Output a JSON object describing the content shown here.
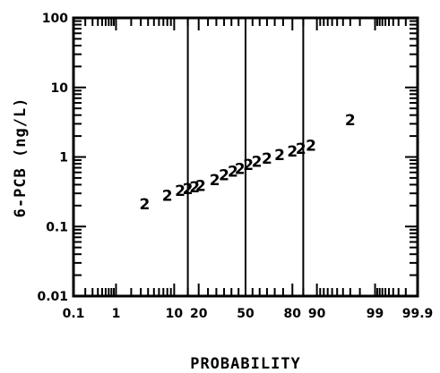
{
  "chart_data": {
    "type": "scatter",
    "title": "",
    "xlabel": "PROBABILITY",
    "ylabel": "6-PCB (ng/L)",
    "x_scale": "normal-probability",
    "y_scale": "log",
    "xlim": [
      0.1,
      99.9
    ],
    "ylim": [
      0.01,
      100
    ],
    "x_tick_labels": [
      "0.1",
      "1",
      "10",
      "20",
      "50",
      "80",
      "90",
      "99",
      "99.9"
    ],
    "x_tick_values": [
      0.1,
      1,
      10,
      20,
      50,
      80,
      90,
      99,
      99.9
    ],
    "y_tick_labels": [
      "0.01",
      "0.1",
      "1",
      "10",
      "100"
    ],
    "y_tick_values": [
      0.01,
      0.1,
      1,
      10,
      100
    ],
    "reference_lines_x": [
      15,
      50,
      85
    ],
    "grid": false,
    "marker": "2",
    "series": [
      {
        "x": [
          3.5,
          8,
          12,
          15,
          18,
          21,
          29,
          35,
          41,
          46,
          52,
          58,
          65,
          73,
          80,
          84,
          88,
          97
        ],
        "y": [
          0.21,
          0.28,
          0.33,
          0.35,
          0.37,
          0.39,
          0.47,
          0.55,
          0.62,
          0.68,
          0.78,
          0.86,
          0.95,
          1.08,
          1.22,
          1.32,
          1.47,
          3.4
        ]
      }
    ]
  }
}
